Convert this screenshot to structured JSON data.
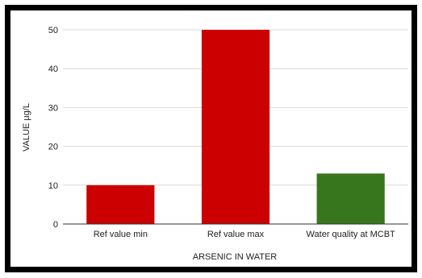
{
  "chart_data": {
    "type": "bar",
    "categories": [
      "Ref value min",
      "Ref value max",
      "Water quality at MCBT"
    ],
    "values": [
      10,
      50,
      13
    ],
    "bar_colors": [
      "#cc0000",
      "#cc0000",
      "#38761d"
    ],
    "title": "",
    "xlabel": "ARSENIC IN WATER",
    "ylabel": "VALUE µg/L",
    "ylim": [
      0,
      50
    ],
    "yticks": [
      0,
      10,
      20,
      30,
      40,
      50
    ],
    "grid": true,
    "legend": "none"
  },
  "colors": {
    "frame": "#000000",
    "gridline": "#d9d9d9",
    "axis": "#333333"
  }
}
